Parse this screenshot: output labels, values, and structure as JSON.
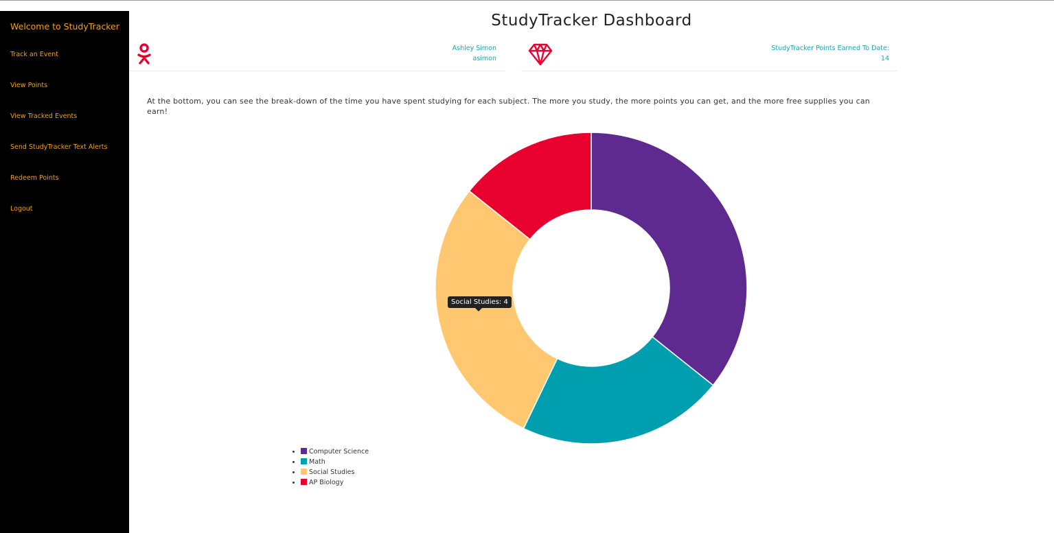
{
  "sidebar": {
    "welcome": "Welcome to StudyTracker",
    "items": [
      {
        "label": "Track an Event"
      },
      {
        "label": "View Points"
      },
      {
        "label": "View Tracked Events"
      },
      {
        "label": "Send StudyTracker Text Alerts"
      },
      {
        "label": "Redeem Points"
      },
      {
        "label": "Logout"
      }
    ]
  },
  "header": {
    "title": "StudyTracker Dashboard"
  },
  "user_card": {
    "icon": "odnoklassniki-person-icon",
    "name": "Ashley Simon",
    "username": "asimon"
  },
  "points_card": {
    "icon": "diamond-icon",
    "label": "StudyTracker Points Earned To Date:",
    "value": "14"
  },
  "description": "At the bottom, you can see the break-down of the time you have spent studying for each subject. The more you study, the more points you can get, and the more free supplies you can earn!",
  "tooltip": {
    "text": "Social Studies: 4"
  },
  "colors": {
    "accent": "#f0a020",
    "info_text": "#1aa3b8",
    "brand_red": "#e8002f"
  },
  "chart_data": {
    "type": "pie",
    "donut": true,
    "categories": [
      "Computer Science",
      "Math",
      "Social Studies",
      "AP Biology"
    ],
    "values": [
      5,
      3,
      4,
      2
    ],
    "colors": [
      "#5f2a8f",
      "#009fb0",
      "#ffc870",
      "#e8002f"
    ],
    "legend_position": "bottom-left"
  }
}
